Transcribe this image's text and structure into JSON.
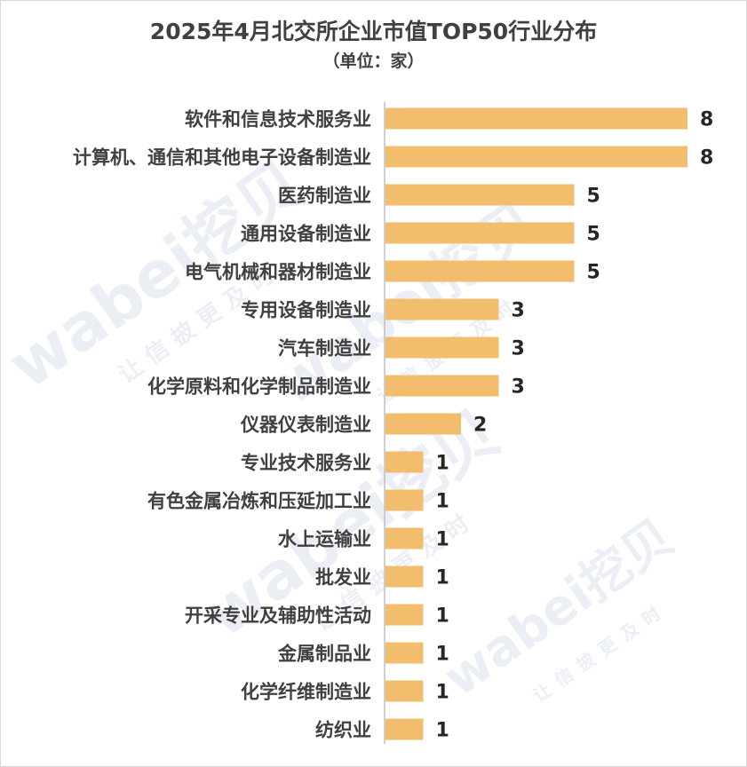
{
  "watermark": {
    "brand": "wabei挖贝",
    "slogan": "让信披更及时"
  },
  "colors": {
    "bar": "#F2BE6E",
    "axis": "#BFBFBF",
    "text": "#404040"
  },
  "chart_data": {
    "type": "bar",
    "orientation": "horizontal",
    "title": "2025年4月北交所企业市值TOP50行业分布",
    "subtitle": "（单位：家）",
    "categories": [
      "软件和信息技术服务业",
      "计算机、通信和其他电子设备制造业",
      "医药制造业",
      "通用设备制造业",
      "电气机械和器材制造业",
      "专用设备制造业",
      "汽车制造业",
      "化学原料和化学制品制造业",
      "仪器仪表制造业",
      "专业技术服务业",
      "有色金属冶炼和压延加工业",
      "水上运输业",
      "批发业",
      "开采专业及辅助性活动",
      "金属制品业",
      "化学纤维制造业",
      "纺织业"
    ],
    "values": [
      8,
      8,
      5,
      5,
      5,
      3,
      3,
      3,
      2,
      1,
      1,
      1,
      1,
      1,
      1,
      1,
      1
    ],
    "xlim": [
      0,
      8
    ],
    "grid": false,
    "legend": "none"
  }
}
